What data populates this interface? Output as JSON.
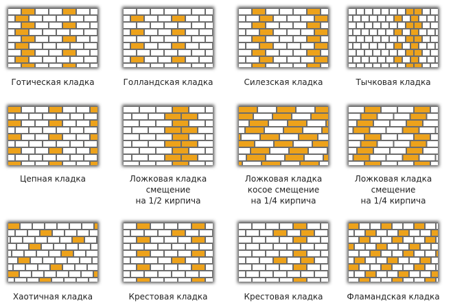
{
  "tiles": [
    {
      "label": [
        "Готическая кладка"
      ]
    },
    {
      "label": [
        "Голландская кладка"
      ]
    },
    {
      "label": [
        "Силезская кладка"
      ]
    },
    {
      "label": [
        "Тычковая кладка"
      ]
    },
    {
      "label": [
        "Цепная кладка"
      ]
    },
    {
      "label": [
        "Ложковая кладка",
        "смещение",
        "на 1/2 кирпича"
      ]
    },
    {
      "label": [
        "Ложковая кладка",
        "косое смещение",
        "на 1/4 кирпича"
      ]
    },
    {
      "label": [
        "Ложковая кладка",
        "смещение",
        "на 1/4 кирпича"
      ]
    },
    {
      "label": [
        "Хаотичная кладка"
      ]
    },
    {
      "label": [
        "Крестовая кладка"
      ]
    },
    {
      "label": [
        "Крестовая кладка"
      ]
    },
    {
      "label": [
        "Фламандская кладка"
      ]
    }
  ]
}
